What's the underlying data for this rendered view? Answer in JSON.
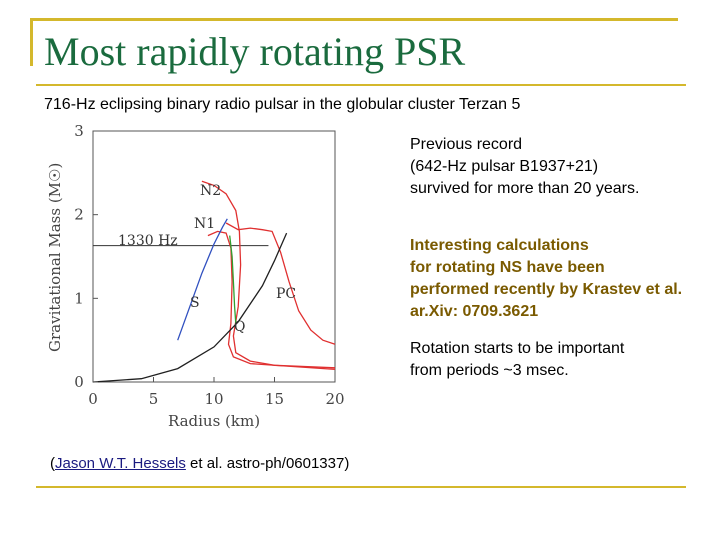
{
  "slide": {
    "title": "Most rapidly rotating PSR",
    "subtitle": "716-Hz eclipsing binary radio pulsar in the globular cluster Terzan 5",
    "paragraphs": [
      {
        "lines": [
          "Previous record",
          "(642-Hz pulsar B1937+21)",
          "survived for more than 20 years."
        ]
      },
      {
        "lines": [
          "Interesting calculations",
          "for rotating NS have been",
          "performed recently by Krastev et al.",
          "ar.Xiv: 0709.3621"
        ]
      },
      {
        "lines": [
          "Rotation starts to be important",
          "from periods ~3 msec."
        ]
      }
    ],
    "citation": {
      "open": "(",
      "author": "Jason W.T. Hessels",
      "rest": " et al.  astro-ph/0601337)"
    }
  },
  "chart_data": {
    "type": "line",
    "xlabel": "Radius (km)",
    "ylabel": "Gravitational Mass (M☉)",
    "xlim": [
      0,
      20
    ],
    "ylim": [
      0,
      3
    ],
    "xticks": [
      "0",
      "5",
      "10",
      "15",
      "20"
    ],
    "yticks": [
      "0",
      "1",
      "2",
      "3"
    ],
    "annotations": [
      "1330 Hz",
      "N2",
      "N1",
      "S",
      "PC",
      "Q"
    ],
    "reference_line": {
      "label": "1330 Hz",
      "mass": 1.63,
      "radius_end": 14.5
    },
    "curves": [
      {
        "label": "N2",
        "color": "#e03030",
        "points": [
          [
            9.0,
            2.4
          ],
          [
            10.0,
            2.35
          ],
          [
            11.0,
            2.25
          ],
          [
            11.8,
            2.05
          ],
          [
            12.1,
            1.8
          ],
          [
            12.2,
            1.4
          ],
          [
            12.0,
            0.9
          ],
          [
            11.6,
            0.55
          ],
          [
            11.8,
            0.35
          ],
          [
            13.0,
            0.25
          ],
          [
            15.0,
            0.2
          ],
          [
            20.0,
            0.17
          ]
        ]
      },
      {
        "label": "N1",
        "color": "#e03030",
        "points": [
          [
            9.5,
            1.75
          ],
          [
            10.3,
            1.8
          ],
          [
            11.0,
            1.78
          ],
          [
            11.4,
            1.6
          ],
          [
            11.5,
            1.2
          ],
          [
            11.4,
            0.7
          ],
          [
            11.2,
            0.45
          ],
          [
            11.6,
            0.3
          ],
          [
            13.0,
            0.22
          ],
          [
            20.0,
            0.15
          ]
        ]
      },
      {
        "label": "PC",
        "color": "#e03030",
        "points": [
          [
            11.0,
            1.9
          ],
          [
            12.0,
            1.82
          ],
          [
            13.0,
            1.84
          ],
          [
            14.0,
            1.82
          ],
          [
            14.8,
            1.8
          ],
          [
            15.5,
            1.55
          ],
          [
            16.2,
            1.2
          ],
          [
            17.0,
            0.85
          ],
          [
            18.0,
            0.62
          ],
          [
            19.0,
            0.5
          ],
          [
            20.0,
            0.45
          ]
        ]
      },
      {
        "label": "S",
        "color": "#3050c0",
        "points": [
          [
            7.0,
            0.5
          ],
          [
            8.0,
            0.9
          ],
          [
            9.0,
            1.3
          ],
          [
            10.0,
            1.65
          ],
          [
            10.7,
            1.85
          ],
          [
            11.1,
            1.95
          ]
        ]
      },
      {
        "label": "Q",
        "color": "#30a030",
        "points": [
          [
            11.3,
            1.75
          ],
          [
            11.5,
            1.5
          ],
          [
            11.6,
            1.2
          ],
          [
            11.7,
            0.9
          ],
          [
            11.8,
            0.7
          ]
        ]
      },
      {
        "label": "",
        "color": "#202020",
        "points": [
          [
            0.0,
            0.0
          ],
          [
            4.0,
            0.04
          ],
          [
            7.0,
            0.16
          ],
          [
            10.0,
            0.42
          ],
          [
            12.0,
            0.72
          ],
          [
            14.0,
            1.15
          ],
          [
            15.0,
            1.45
          ],
          [
            16.0,
            1.78
          ]
        ]
      }
    ]
  }
}
